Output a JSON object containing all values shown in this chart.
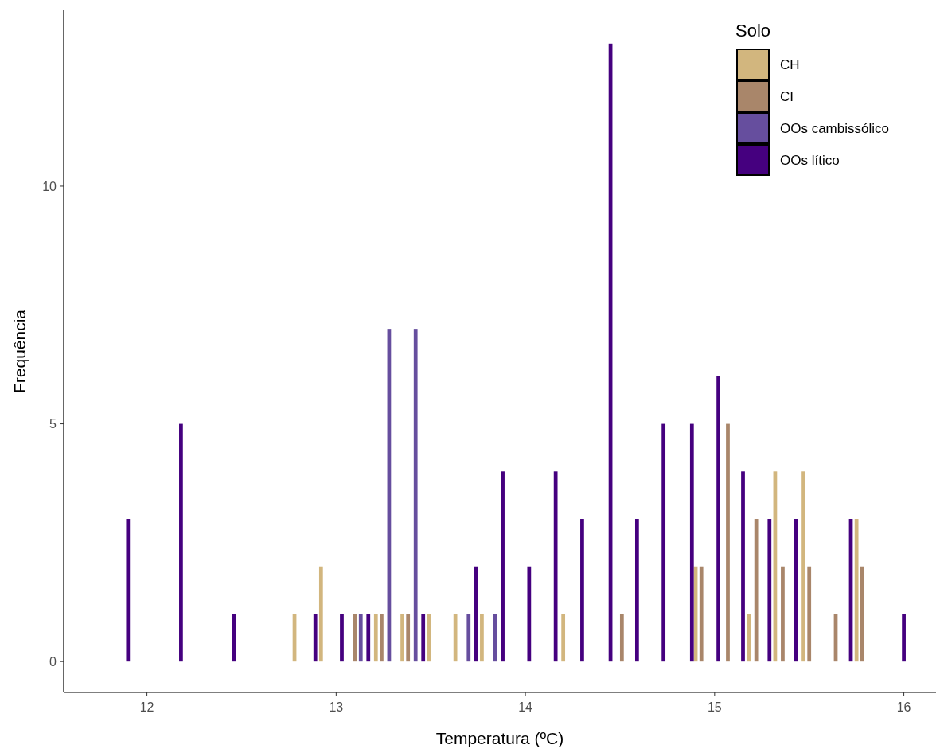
{
  "chart_data": {
    "type": "bar",
    "xlabel": "Temperatura (ºC)",
    "ylabel": "Frequência",
    "legend_title": "Solo",
    "legend": "top right",
    "grid": false,
    "xlim": [
      11.56,
      16.17
    ],
    "xticks": [
      12,
      13,
      14,
      15,
      16
    ],
    "ylim": [
      -0.65,
      13.7
    ],
    "yticks": [
      0,
      5,
      10
    ],
    "series": [
      {
        "name": "CH",
        "color": "#d2b67e",
        "x": [
          12.78,
          12.92,
          13.21,
          13.35,
          13.49,
          13.63,
          13.77,
          14.2,
          14.9,
          15.18,
          15.32,
          15.47,
          15.75
        ],
        "values": [
          1,
          2,
          1,
          1,
          1,
          1,
          1,
          1,
          2,
          1,
          4,
          4,
          3
        ]
      },
      {
        "name": "CI",
        "color": "#a9866a",
        "x": [
          13.1,
          13.24,
          13.38,
          14.51,
          14.93,
          15.07,
          15.22,
          15.36,
          15.5,
          15.64,
          15.78
        ],
        "values": [
          1,
          1,
          1,
          1,
          2,
          5,
          3,
          2,
          2,
          1,
          2
        ]
      },
      {
        "name": "OOs cambissólico",
        "color": "#664e9e",
        "x": [
          13.13,
          13.28,
          13.42,
          13.7,
          13.84
        ],
        "values": [
          1,
          7,
          7,
          1,
          1
        ]
      },
      {
        "name": "OOs lítico",
        "color": "#45007f",
        "x": [
          11.9,
          12.18,
          12.46,
          12.89,
          13.03,
          13.17,
          13.46,
          13.74,
          13.88,
          14.02,
          14.16,
          14.3,
          14.45,
          14.59,
          14.73,
          14.88,
          15.02,
          15.15,
          15.29,
          15.43,
          15.72,
          16.0
        ],
        "values": [
          3,
          5,
          1,
          1,
          1,
          1,
          1,
          2,
          4,
          2,
          4,
          3,
          13,
          3,
          5,
          5,
          6,
          4,
          3,
          3,
          3,
          1
        ]
      }
    ]
  }
}
